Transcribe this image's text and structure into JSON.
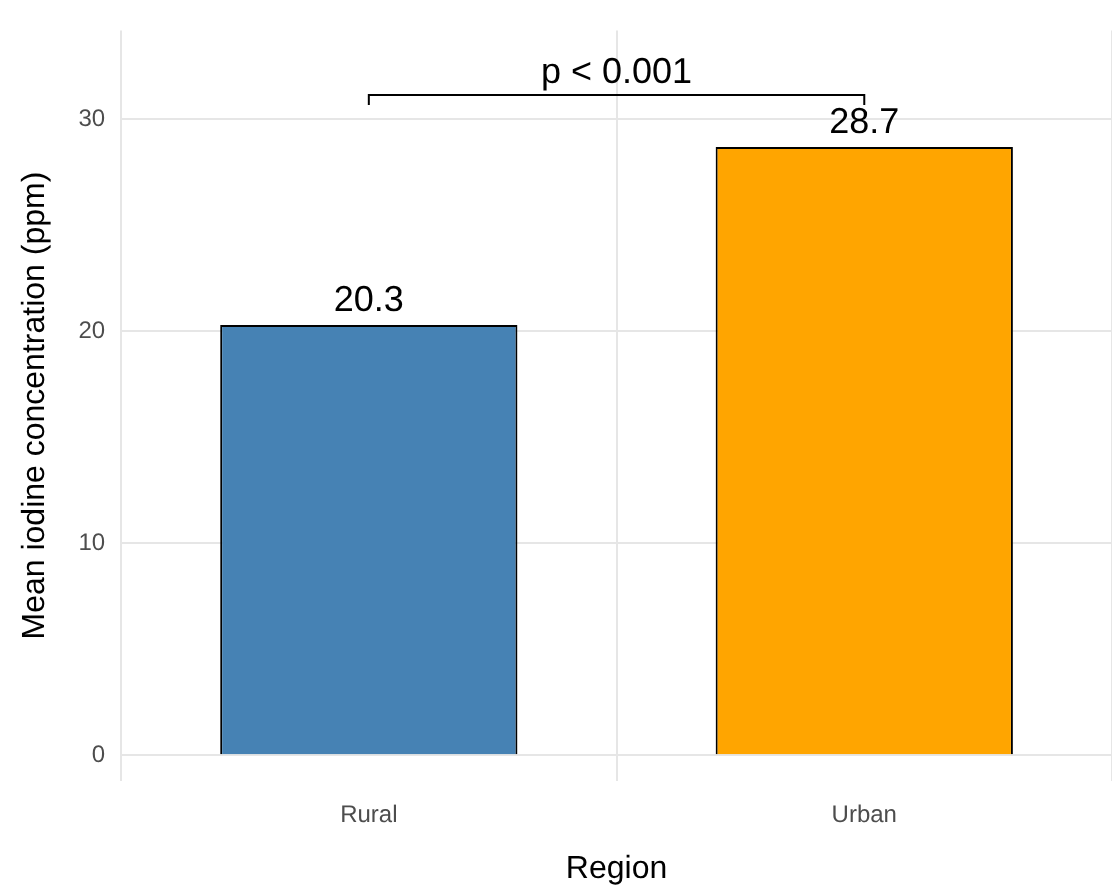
{
  "chart_data": {
    "type": "bar",
    "xlabel": "Region",
    "ylabel": "Mean iodine concentration (ppm)",
    "categories": [
      "Rural",
      "Urban"
    ],
    "values": [
      20.3,
      28.7
    ],
    "colors": [
      "#4682b4",
      "#ffa500"
    ],
    "ylim": [
      -1.2,
      34.2
    ],
    "yticks": [
      0,
      10,
      20,
      30
    ],
    "grid": true,
    "data_labels": true,
    "annotations": [
      "p < 0.001"
    ]
  }
}
